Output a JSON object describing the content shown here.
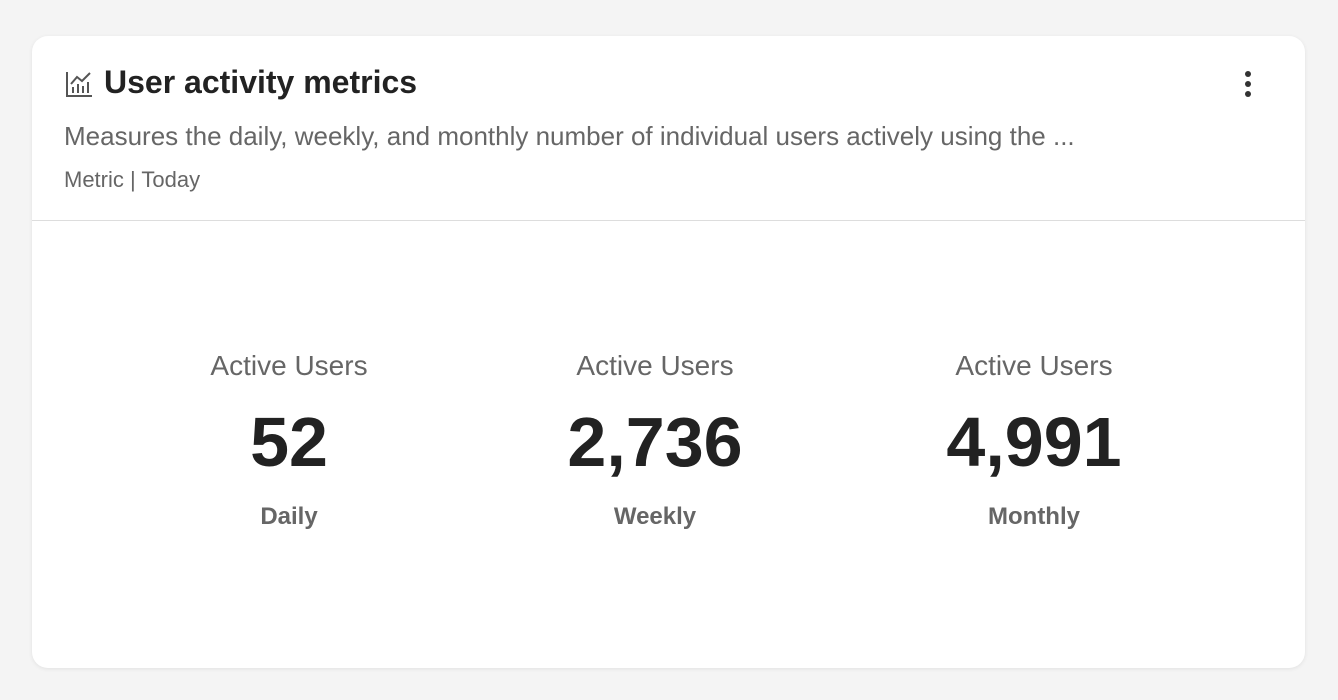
{
  "card": {
    "title": "User activity metrics",
    "description": "Measures the daily, weekly, and monthly number of individual users actively using the ...",
    "meta": "Metric | Today",
    "metrics": [
      {
        "label": "Active Users",
        "value": "52",
        "period": "Daily"
      },
      {
        "label": "Active Users",
        "value": "2,736",
        "period": "Weekly"
      },
      {
        "label": "Active Users",
        "value": "4,991",
        "period": "Monthly"
      }
    ]
  }
}
